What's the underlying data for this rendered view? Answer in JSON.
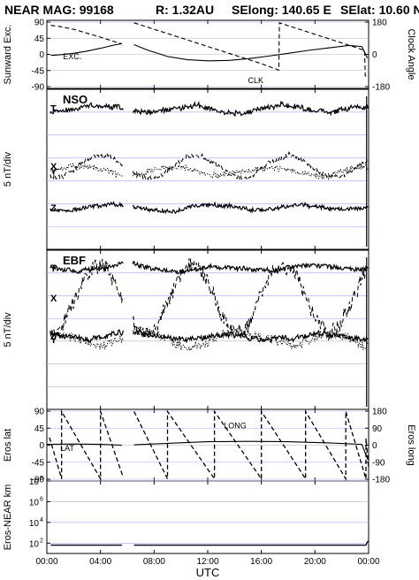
{
  "header": {
    "mission": "NEAR MAG: 99168",
    "range": "R: 1.32AU",
    "selong": "SElong:  140.65 E",
    "selat": "SElat:   10.60 N"
  },
  "colors": {
    "ink": "#000000",
    "grid": "#aaaaff",
    "background": "#ffffff"
  },
  "time_axis": {
    "label": "UTC",
    "ticks": [
      "00:00",
      "04:00",
      "08:00",
      "12:00",
      "16:00",
      "20:00",
      "00:00"
    ],
    "tick_hours": [
      0,
      4,
      8,
      12,
      16,
      20,
      24
    ],
    "range_hours": [
      0,
      24
    ],
    "data_gap_hours": [
      5.7,
      6.4
    ]
  },
  "chart_data": [
    {
      "id": "panel1",
      "type": "line",
      "ylabel": "Sunward Exc.",
      "ylabel_right": "Clock Angle",
      "ylim": [
        -90,
        90
      ],
      "yticks": [
        "90",
        "45",
        "0",
        "-45",
        "-90"
      ],
      "yticks_right": [
        "180",
        "0",
        "-180"
      ],
      "right_ylim": [
        -180,
        180
      ],
      "grid": true,
      "annotations": [
        {
          "text": "EXC.",
          "x": 1.2,
          "y": -14
        },
        {
          "text": "CLK",
          "x": 15.0,
          "y": -80
        }
      ],
      "series": [
        {
          "key": "exc",
          "style": "solid",
          "axis": "left",
          "x": [
            0.3,
            1,
            2,
            3,
            4,
            5,
            5.6,
            6.5,
            7.5,
            9,
            10.5,
            12,
            13.5,
            15,
            16.5,
            18,
            19.5,
            21,
            22.5,
            23.5,
            23.9
          ],
          "y": [
            -3,
            -1,
            3,
            9,
            17,
            26,
            30,
            27,
            12,
            -6,
            -15,
            -18,
            -17,
            -12,
            -5,
            3,
            11,
            18,
            25,
            22,
            -10
          ]
        },
        {
          "key": "clk",
          "style": "dashed",
          "axis": "right",
          "x": [
            0.3,
            1,
            2,
            3,
            4,
            5,
            5.6,
            6.5,
            8,
            10,
            12,
            14,
            16,
            17.3,
            17.35,
            18,
            19,
            20,
            21,
            22,
            23,
            23.7,
            23.75,
            24
          ],
          "y": [
            162,
            155,
            140,
            118,
            96,
            72,
            58,
            176,
            140,
            92,
            44,
            -4,
            -52,
            -88,
            176,
            160,
            136,
            112,
            88,
            64,
            40,
            22,
            -120,
            -128
          ]
        }
      ]
    },
    {
      "id": "panel2",
      "type": "line",
      "title": "NSO",
      "ylabel": "5 nT/div",
      "ylim": [
        0,
        1
      ],
      "grid": true,
      "traces": [
        {
          "key": "T",
          "label": "T",
          "style": "solid",
          "base": 0.88,
          "amp": 0.035,
          "seed": 11
        },
        {
          "key": "X",
          "label": "X",
          "style": "dashed",
          "base": 0.52,
          "amp": 0.03,
          "seed": 23
        },
        {
          "key": "Y",
          "label": "Y",
          "style": "dotted",
          "base": 0.49,
          "amp": 0.035,
          "seed": 37
        },
        {
          "key": "Z",
          "label": "Z",
          "style": "solid",
          "base": 0.26,
          "amp": 0.025,
          "seed": 41
        }
      ]
    },
    {
      "id": "panel3",
      "type": "line",
      "title": "EBF",
      "ylabel": "5 nT/div",
      "ylim": [
        0,
        1
      ],
      "grid": true,
      "traces": [
        {
          "key": "T",
          "label": "T",
          "style": "solid",
          "base": 0.89,
          "amp": 0.03,
          "seed": 53
        },
        {
          "key": "X",
          "label": "X",
          "style": "dashed",
          "base": 0.7,
          "amp": 0.1,
          "seed": 61
        },
        {
          "key": "Z",
          "label": "Z",
          "style": "solid",
          "base": 0.46,
          "amp": 0.035,
          "seed": 71
        },
        {
          "key": "Y",
          "label": "Y",
          "style": "dotted",
          "base": 0.44,
          "amp": 0.06,
          "seed": 83
        }
      ]
    },
    {
      "id": "panel4",
      "type": "line",
      "ylabel": "Eros lat",
      "ylabel_right": "Eros long",
      "ylim": [
        -90,
        90
      ],
      "yticks": [
        "90",
        "45",
        "0",
        "-45",
        "-90"
      ],
      "yticks_right": [
        "180",
        "90",
        "0",
        "-90",
        "-180"
      ],
      "right_ylim": [
        -180,
        180
      ],
      "grid": true,
      "annotations": [
        {
          "text": "LAT",
          "x": 1.0,
          "y": -15
        },
        {
          "text": "LONG",
          "x": 13.2,
          "y": 45
        }
      ],
      "series": [
        {
          "key": "lat",
          "style": "solid",
          "axis": "left",
          "x": [
            0,
            2,
            4,
            5.6,
            6.5,
            9,
            12,
            15,
            18,
            21,
            23.5,
            23.9,
            24
          ],
          "y": [
            2,
            3,
            2,
            0,
            1,
            5,
            9,
            10,
            9,
            6,
            2,
            -35,
            -38
          ]
        }
      ],
      "long_sawtooth": {
        "axis": "right",
        "reset_hours": [
          1.1,
          4.0,
          6.5,
          9.0,
          12.5,
          16.0,
          19.3,
          22.3
        ],
        "high": 178,
        "low": -178,
        "end_value": -120
      }
    },
    {
      "id": "panel5",
      "type": "line",
      "ylabel": "Eros-NEAR km",
      "scale": "log",
      "ylim_exp": [
        1,
        8
      ],
      "yticks": [
        "10",
        "10",
        "10",
        "10"
      ],
      "ytick_exponents": [
        "8",
        "6",
        "4",
        "2"
      ],
      "ytick_exp_values": [
        8,
        6,
        4,
        2
      ],
      "grid": true,
      "series": [
        {
          "key": "range",
          "style": "solid",
          "x": [
            0.3,
            3,
            5.6,
            6.5,
            10,
            15,
            20,
            23.8,
            23.9,
            24
          ],
          "y_exp": [
            1.8,
            1.8,
            1.8,
            1.8,
            1.8,
            1.8,
            1.8,
            1.8,
            2.1,
            2.2
          ]
        }
      ]
    }
  ]
}
